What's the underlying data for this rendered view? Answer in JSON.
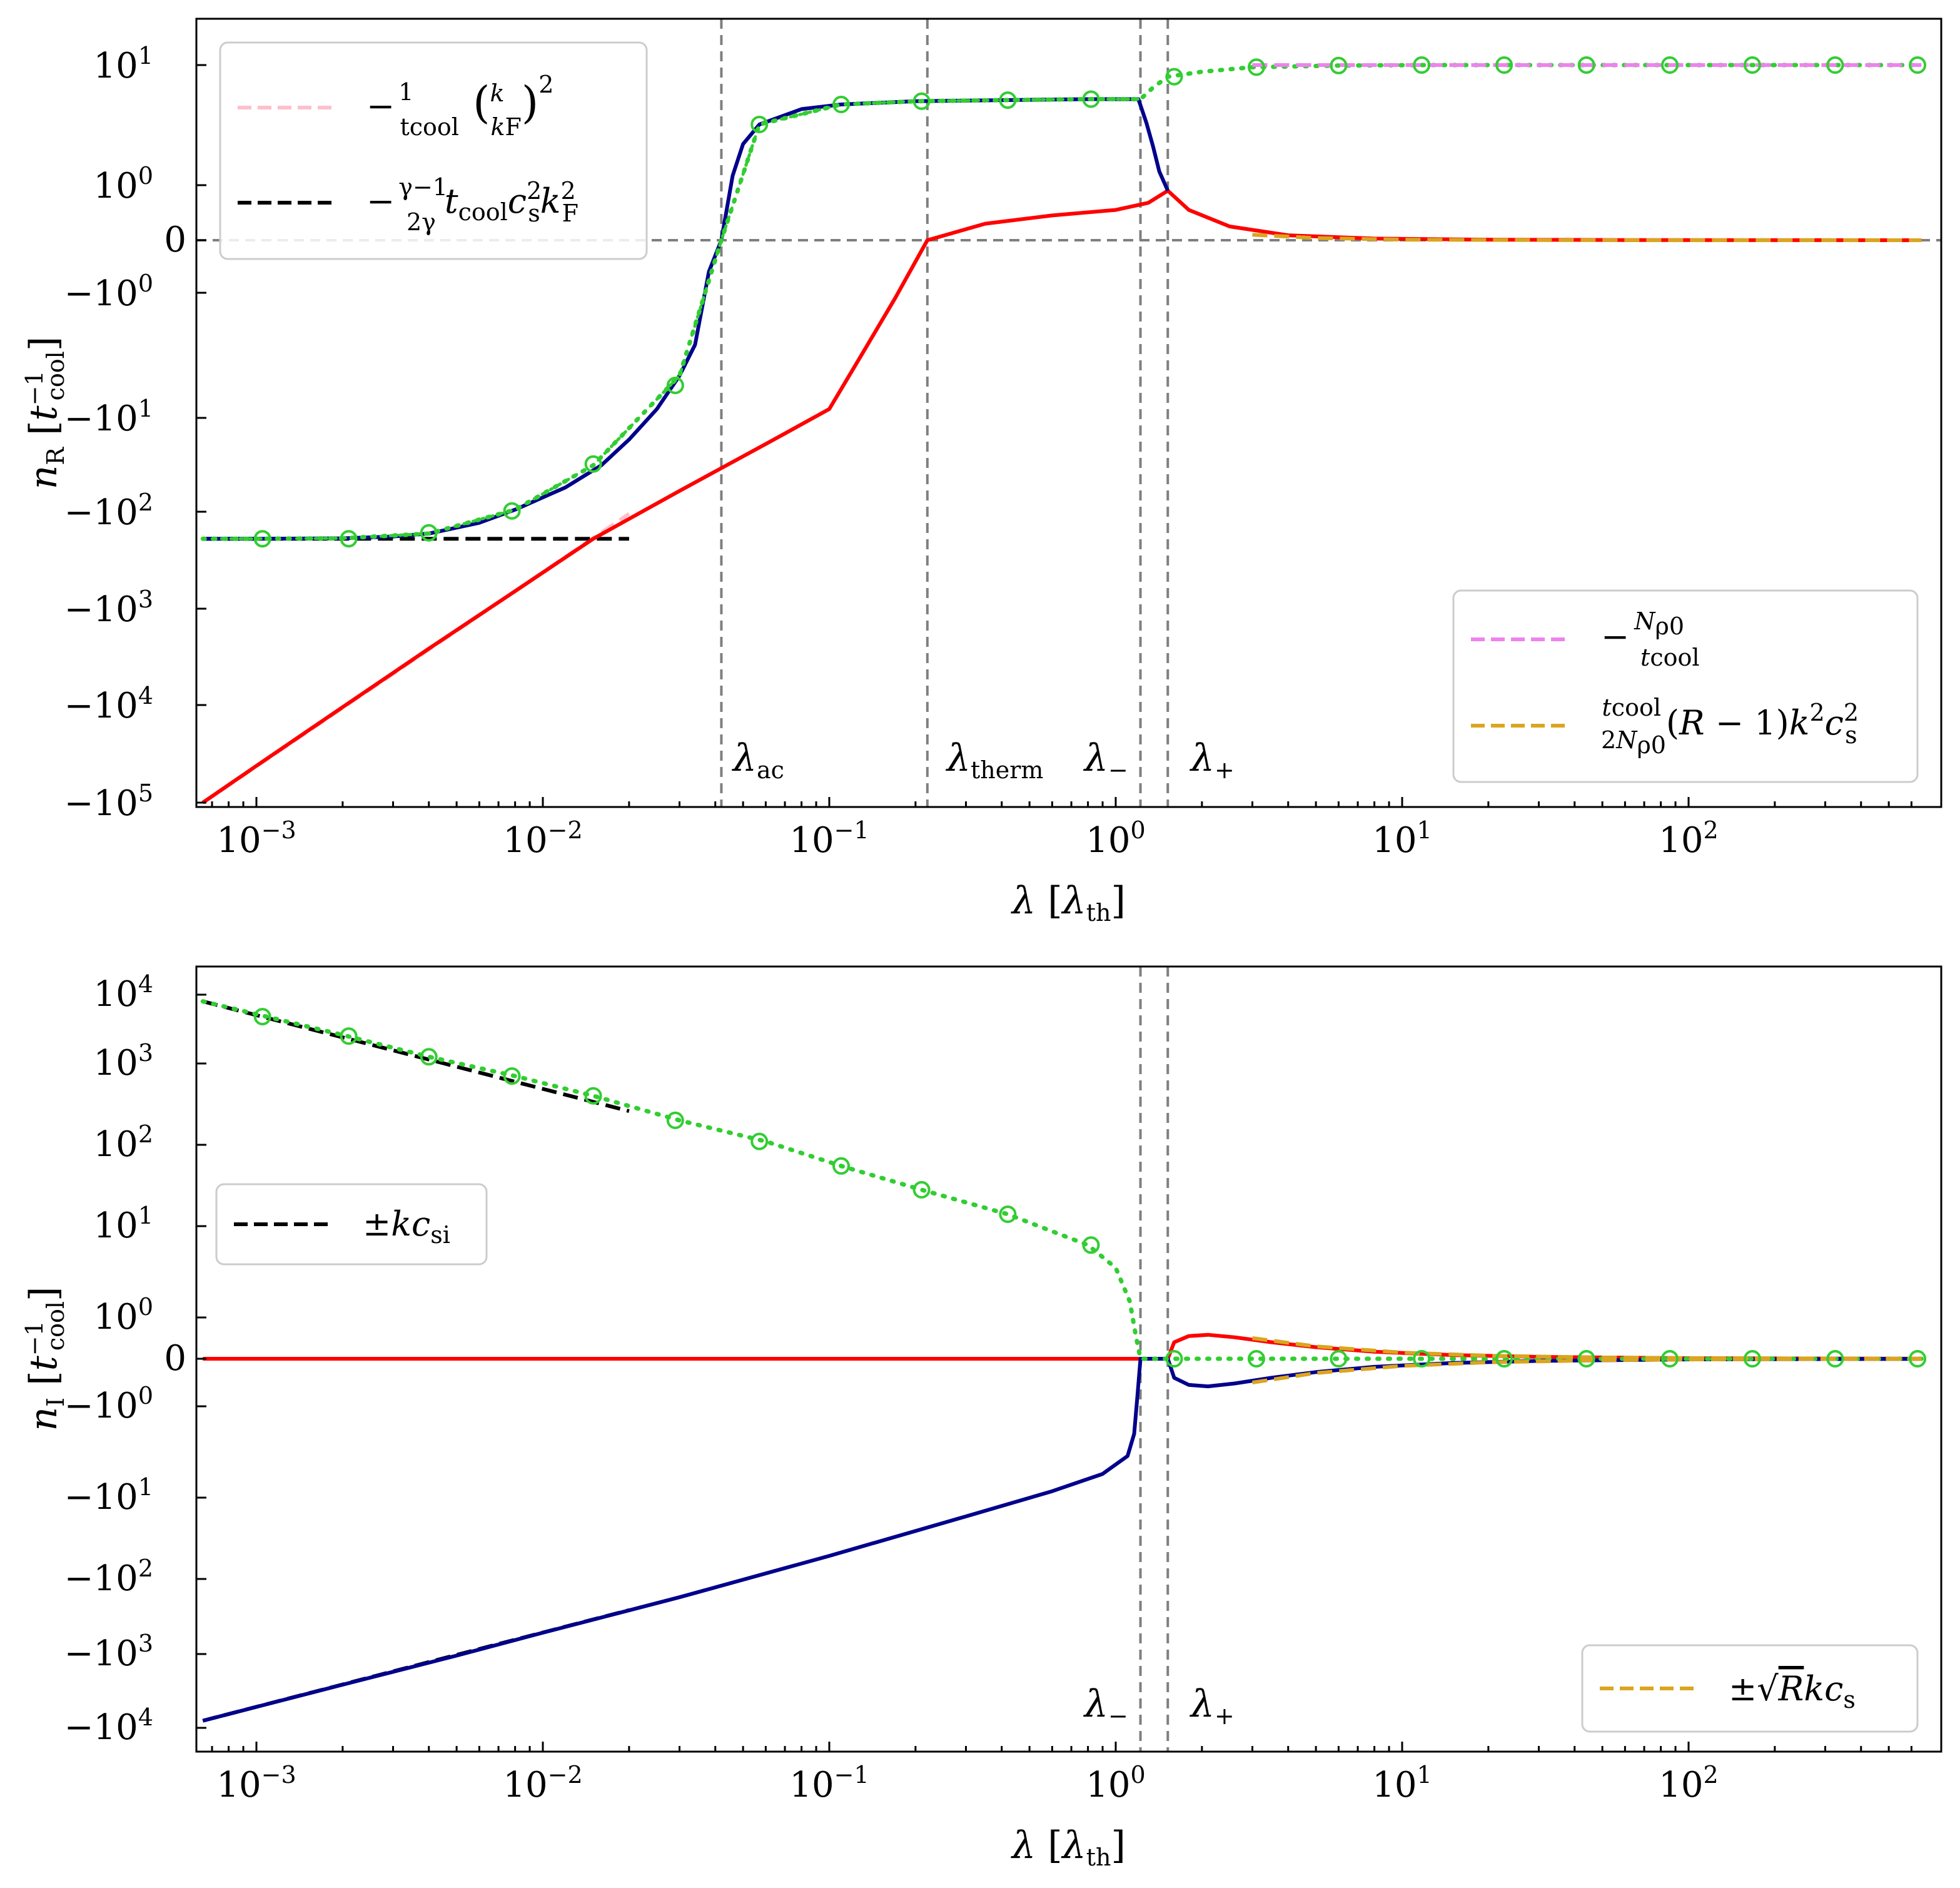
{
  "chart_data": [
    {
      "id": "top",
      "type": "line",
      "xscale": "log",
      "yscale": "symlog",
      "xlim": [
        0.00065,
        650
      ],
      "ylim": [
        -100000,
        25
      ],
      "ylabel": "n_R [t_cool^-1]",
      "xlabel": "λ [λ_th]",
      "xticks": [
        "10^-3",
        "10^-2",
        "10^-1",
        "10^0",
        "10^1",
        "10^2"
      ],
      "yticks": [
        "10^1",
        "10^0",
        "0",
        "-10^0",
        "-10^1",
        "-10^2",
        "-10^3",
        "-10^4",
        "-10^5"
      ],
      "vlines": [
        {
          "x": 0.042,
          "label": "λ_ac"
        },
        {
          "x": 0.22,
          "label": "λ_therm"
        },
        {
          "x": 1.22,
          "label": "λ_−"
        },
        {
          "x": 1.52,
          "label": "λ_+"
        }
      ],
      "hline": 0,
      "series": [
        {
          "name": "mode-red",
          "color": "#ff0000",
          "style": "solid",
          "x": [
            0.00065,
            0.001,
            0.002,
            0.004,
            0.008,
            0.015,
            0.03,
            0.06,
            0.1,
            0.13,
            0.17,
            0.22,
            0.35,
            0.6,
            1.0,
            1.3,
            1.52,
            1.8,
            2.5,
            4,
            8,
            20,
            60,
            200,
            650
          ],
          "y": [
            -100000,
            -42000,
            -10500,
            -2600,
            -660,
            -190,
            -60,
            -19,
            -8.5,
            -3.1,
            -1.1,
            0,
            0.3,
            0.45,
            0.55,
            0.68,
            0.9,
            0.55,
            0.25,
            0.09,
            0.03,
            0.01,
            0.003,
            0.001,
            0.0003
          ]
        },
        {
          "name": "mode-navy",
          "color": "#00008b",
          "style": "solid",
          "x": [
            0.00065,
            0.001,
            0.002,
            0.003,
            0.004,
            0.006,
            0.008,
            0.012,
            0.016,
            0.02,
            0.025,
            0.03,
            0.034,
            0.038,
            0.042,
            0.046,
            0.05,
            0.057,
            0.08,
            0.11,
            0.2,
            0.4,
            0.8,
            1.2,
            1.28,
            1.35,
            1.42,
            1.52
          ],
          "y": [
            -190,
            -190,
            -188,
            -180,
            -168,
            -130,
            -95,
            -55,
            -32,
            -17,
            -8.5,
            -4.6,
            -2.6,
            -0.6,
            0,
            1.2,
            2.2,
            3.2,
            4.3,
            4.7,
            5.0,
            5.1,
            5.2,
            5.2,
            3.3,
            2.1,
            1.3,
            0.9
          ]
        },
        {
          "name": "mode-green",
          "color": "#32cd32",
          "style": "dotted",
          "x": [
            0.00065,
            0.001,
            0.002,
            0.004,
            0.008,
            0.015,
            0.03,
            0.042,
            0.057,
            0.11,
            0.2,
            0.4,
            0.8,
            1.22,
            1.35,
            1.52,
            2,
            3,
            6,
            12,
            24,
            48,
            100,
            200,
            650
          ],
          "y": [
            -190,
            -190,
            -188,
            -168,
            -95,
            -32,
            -4.6,
            0,
            3.2,
            4.7,
            5.0,
            5.1,
            5.2,
            5.2,
            6.5,
            8.0,
            8.8,
            9.6,
            9.9,
            10,
            10,
            10,
            10,
            10,
            10
          ]
        },
        {
          "name": "fit-pink",
          "legend": "−(1/t_cool)(k/k_F)^2",
          "color": "#ffc0cb",
          "style": "dashed",
          "x": [
            0.00065,
            0.02
          ],
          "y": [
            -100000,
            -105
          ]
        },
        {
          "name": "fit-black",
          "legend": "−((γ−1)/2γ) t_cool c_s^2 k_F^2",
          "color": "#000000",
          "style": "dashed",
          "x": [
            0.00065,
            0.02
          ],
          "y": [
            -190,
            -190
          ]
        },
        {
          "name": "fit-violet",
          "legend": "−N_ρ0 / t_cool",
          "color": "#ee82ee",
          "style": "dashed",
          "x": [
            3,
            650
          ],
          "y": [
            10,
            10
          ]
        },
        {
          "name": "fit-gold",
          "legend": "(t_cool / 2N_ρ0)(R−1) k^2 c_s^2",
          "color": "#daa520",
          "style": "dashed",
          "x": [
            3,
            5,
            10,
            30,
            100,
            650
          ],
          "y": [
            0.1,
            0.04,
            0.01,
            0.002,
            0.0003,
            1e-05
          ]
        }
      ],
      "markers": {
        "series": "mode-green",
        "color": "#32cd32",
        "x": [
          0.00105,
          0.0021,
          0.004,
          0.0078,
          0.015,
          0.029,
          0.057,
          0.11,
          0.21,
          0.42,
          0.82,
          1.6,
          3.1,
          6.0,
          11.7,
          22.7,
          44,
          86,
          167,
          325,
          630
        ],
        "y": [
          -190,
          -190,
          -165,
          -98,
          -31,
          -5.5,
          3.2,
          4.7,
          5.0,
          5.1,
          5.2,
          8.0,
          9.6,
          9.9,
          10,
          10,
          10,
          10,
          10,
          10,
          10
        ]
      }
    },
    {
      "id": "bottom",
      "type": "line",
      "xscale": "log",
      "yscale": "symlog",
      "xlim": [
        0.00065,
        650
      ],
      "ylim": [
        -25000,
        25000
      ],
      "ylabel": "n_I [t_cool^-1]",
      "xlabel": "λ [λ_th]",
      "xticks": [
        "10^-3",
        "10^-2",
        "10^-1",
        "10^0",
        "10^1",
        "10^2"
      ],
      "yticks": [
        "10^4",
        "10^3",
        "10^2",
        "10^1",
        "10^0",
        "0",
        "-10^0",
        "-10^1",
        "-10^2",
        "-10^3",
        "-10^4"
      ],
      "vlines": [
        {
          "x": 1.22,
          "label": "λ_−"
        },
        {
          "x": 1.52,
          "label": "λ_+"
        }
      ],
      "hline": 0,
      "series": [
        {
          "name": "mode-red",
          "color": "#ff0000",
          "style": "solid",
          "x": [
            0.00065,
            1.52,
            1.6,
            1.8,
            2.1,
            2.6,
            3.5,
            5,
            8,
            15,
            30,
            100,
            650
          ],
          "y": [
            0,
            0,
            0.4,
            0.55,
            0.58,
            0.52,
            0.4,
            0.28,
            0.17,
            0.09,
            0.045,
            0.013,
            0.002
          ]
        },
        {
          "name": "mode-navy",
          "color": "#00008b",
          "style": "solid",
          "x": [
            0.00065,
            0.001,
            0.002,
            0.005,
            0.01,
            0.03,
            0.1,
            0.3,
            0.6,
            0.9,
            1.1,
            1.16,
            1.19,
            1.22,
            1.52,
            1.6,
            1.8,
            2.1,
            2.6,
            3.5,
            5,
            8,
            15,
            30,
            100,
            650
          ],
          "y": [
            -8000,
            -5200,
            -2600,
            -1050,
            -520,
            -175,
            -52,
            -17,
            -8.5,
            -5.5,
            -3.5,
            -2.0,
            -0.8,
            0,
            0,
            -0.4,
            -0.55,
            -0.58,
            -0.52,
            -0.4,
            -0.28,
            -0.17,
            -0.09,
            -0.045,
            -0.013,
            -0.002
          ]
        },
        {
          "name": "mode-green",
          "color": "#32cd32",
          "style": "dotted",
          "x": [
            0.00065,
            0.001,
            0.002,
            0.004,
            0.008,
            0.015,
            0.03,
            0.06,
            0.11,
            0.21,
            0.42,
            0.8,
            1.0,
            1.12,
            1.18,
            1.22,
            650
          ],
          "y": [
            8000,
            5200,
            2600,
            1250,
            700,
            400,
            200,
            110,
            55,
            28,
            14,
            6.2,
            3.5,
            1.5,
            0.5,
            0,
            0
          ]
        },
        {
          "name": "fit-black-up",
          "legend": "±k c_si",
          "color": "#000000",
          "style": "dashed",
          "x": [
            0.00065,
            0.02
          ],
          "y": [
            8000,
            260
          ]
        },
        {
          "name": "fit-black-down",
          "color": "#000000",
          "style": "dashed",
          "x": [
            0.00065,
            0.02
          ],
          "y": [
            -8000,
            -260
          ]
        },
        {
          "name": "fit-gold-up",
          "legend": "±√R k c_s",
          "color": "#daa520",
          "style": "dashed",
          "x": [
            3,
            5,
            10,
            20,
            50,
            100,
            300,
            650
          ],
          "y": [
            0.5,
            0.3,
            0.15,
            0.075,
            0.03,
            0.015,
            0.005,
            0.0023
          ]
        },
        {
          "name": "fit-gold-down",
          "color": "#daa520",
          "style": "dashed",
          "x": [
            3,
            5,
            10,
            20,
            50,
            100,
            300,
            650
          ],
          "y": [
            -0.5,
            -0.3,
            -0.15,
            -0.075,
            -0.03,
            -0.015,
            -0.005,
            -0.0023
          ]
        }
      ],
      "markers": {
        "series": "mode-green",
        "color": "#32cd32",
        "x": [
          0.00105,
          0.0021,
          0.004,
          0.0078,
          0.015,
          0.029,
          0.057,
          0.11,
          0.21,
          0.42,
          0.82,
          1.6,
          3.1,
          6.0,
          11.7,
          22.7,
          44,
          86,
          167,
          325,
          630
        ],
        "y": [
          4800,
          2500,
          1250,
          700,
          400,
          200,
          110,
          55,
          28,
          14,
          6.2,
          0,
          0,
          0,
          0,
          0,
          0,
          0,
          0,
          0,
          0
        ]
      }
    }
  ]
}
